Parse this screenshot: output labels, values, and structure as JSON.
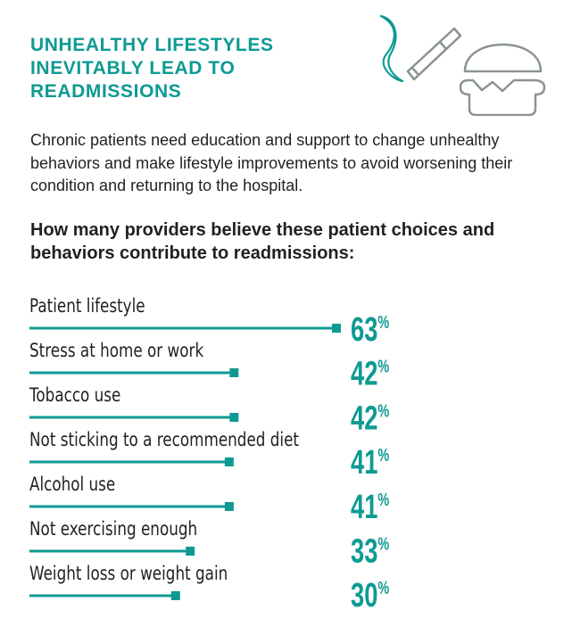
{
  "header": {
    "title_lines": [
      "UNHEALTHY LIFESTYLES",
      "INEVITABLY LEAD TO",
      "READMISSIONS"
    ],
    "icons": [
      "smoke-icon",
      "cigarette-icon",
      "burger-icon"
    ]
  },
  "intro": "Chronic patients need education and support to change unhealthy behaviors and make lifestyle improvements to avoid worsening their condition and returning to the hospital.",
  "question": "How many providers believe these patient choices and behaviors contribute to readmissions:",
  "colors": {
    "accent": "#0e9a93",
    "text": "#231f20",
    "icon_gray": "#8a9396"
  },
  "chart_data": {
    "type": "bar",
    "orientation": "horizontal",
    "title": "How many providers believe these patient choices and behaviors contribute to readmissions:",
    "categories": [
      "Patient lifestyle",
      "Stress at home or work",
      "Tobacco use",
      "Not sticking to a recommended diet",
      "Alcohol use",
      "Not exercising enough",
      "Weight loss or weight gain"
    ],
    "values": [
      63,
      42,
      42,
      41,
      41,
      33,
      30
    ],
    "value_labels": [
      "63%",
      "42%",
      "42%",
      "41%",
      "41%",
      "33%",
      "30%"
    ],
    "unit": "%",
    "xlim": [
      0,
      63
    ],
    "xlabel": "",
    "ylabel": "",
    "grid": false,
    "legend": "none"
  }
}
